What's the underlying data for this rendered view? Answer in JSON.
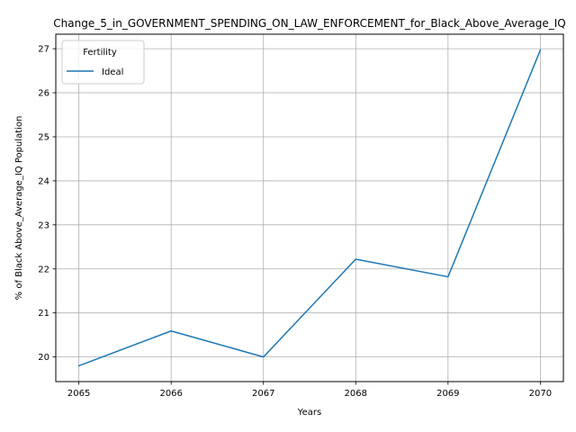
{
  "chart_data": {
    "type": "line",
    "title": "Change_5_in_GOVERNMENT_SPENDING_ON_LAW_ENFORCEMENT_for_Black_Above_Average_IQ",
    "xlabel": "Years",
    "ylabel": "% of Black Above_Average_IQ Population",
    "x": [
      2065,
      2066,
      2067,
      2068,
      2069,
      2070
    ],
    "xticks": [
      "2065",
      "2066",
      "2067",
      "2068",
      "2069",
      "2070"
    ],
    "yticks": [
      "20",
      "21",
      "22",
      "23",
      "24",
      "25",
      "26",
      "27"
    ],
    "xlim": [
      2064.75,
      2070.25
    ],
    "ylim": [
      19.44,
      27.33
    ],
    "grid": true,
    "legend": {
      "title": "Fertility",
      "placement": "top-left"
    },
    "series": [
      {
        "name": "Ideal",
        "color": "#1f77b4",
        "values": [
          19.8,
          20.59,
          20.0,
          22.22,
          21.82,
          26.97
        ]
      }
    ]
  }
}
